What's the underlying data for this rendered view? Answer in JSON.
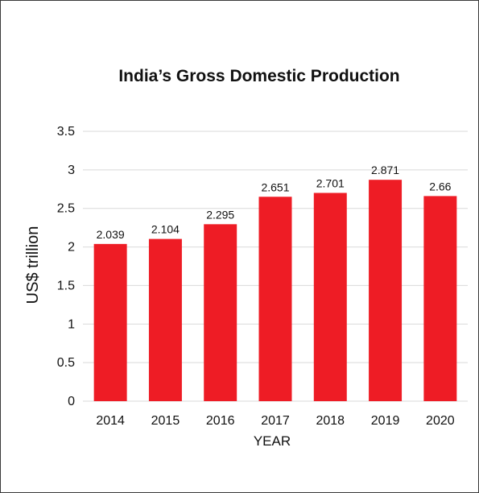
{
  "chart_data": {
    "type": "bar",
    "title": "India’s Gross Domestic Production",
    "xlabel": "YEAR",
    "ylabel": "US$ trillion",
    "categories": [
      "2014",
      "2015",
      "2016",
      "2017",
      "2018",
      "2019",
      "2020"
    ],
    "values": [
      2.039,
      2.104,
      2.295,
      2.651,
      2.701,
      2.871,
      2.66
    ],
    "data_labels": [
      "2.039",
      "2.104",
      "2.295",
      "2.651",
      "2.701",
      "2.871",
      "2.66"
    ],
    "y_ticks": [
      0,
      0.5,
      1,
      1.5,
      2,
      2.5,
      3,
      3.5
    ],
    "y_tick_labels": [
      "0",
      "0.5",
      "1",
      "1.5",
      "2",
      "2.5",
      "3",
      "3.5"
    ],
    "ylim": [
      0,
      3.5
    ],
    "grid": true,
    "legend": "none",
    "bar_color": "#ee1c25",
    "grid_color": "#d9d9d9"
  }
}
